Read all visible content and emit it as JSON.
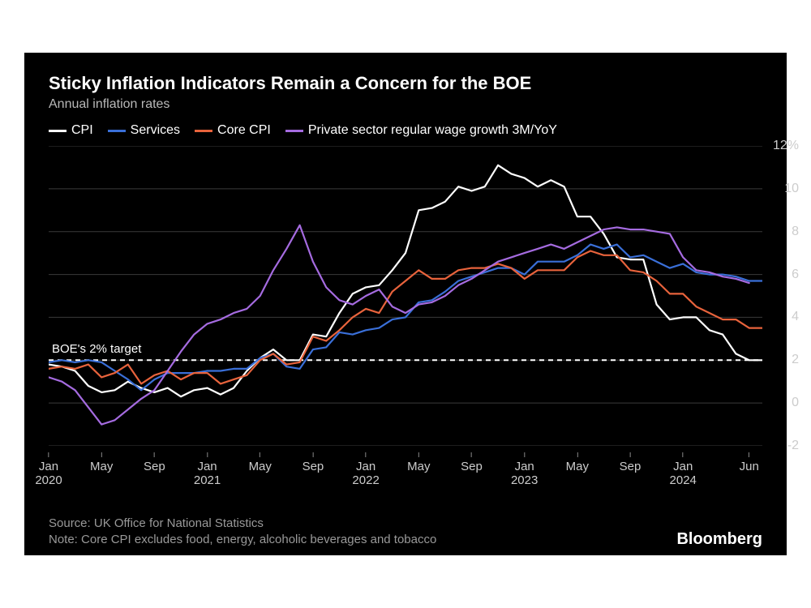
{
  "title": "Sticky Inflation Indicators Remain a Concern for the BOE",
  "subtitle": "Annual inflation rates",
  "brand": "Bloomberg",
  "source_line": "Source: UK Office for National Statistics",
  "note_line": "Note: Core CPI excludes food, energy, alcoholic beverages and tobacco",
  "annotation": {
    "text": "BOE's 2% target",
    "y_value": 2
  },
  "chart": {
    "type": "line",
    "background_color": "#000000",
    "grid_color": "#3a3a3a",
    "axis_color": "#cccccc",
    "line_width": 2.2,
    "x": {
      "min": 0,
      "max": 54,
      "ticks": [
        {
          "pos": 0,
          "month": "Jan",
          "year": "2020"
        },
        {
          "pos": 4,
          "month": "May",
          "year": ""
        },
        {
          "pos": 8,
          "month": "Sep",
          "year": ""
        },
        {
          "pos": 12,
          "month": "Jan",
          "year": "2021"
        },
        {
          "pos": 16,
          "month": "May",
          "year": ""
        },
        {
          "pos": 20,
          "month": "Sep",
          "year": ""
        },
        {
          "pos": 24,
          "month": "Jan",
          "year": "2022"
        },
        {
          "pos": 28,
          "month": "May",
          "year": ""
        },
        {
          "pos": 32,
          "month": "Sep",
          "year": ""
        },
        {
          "pos": 36,
          "month": "Jan",
          "year": "2023"
        },
        {
          "pos": 40,
          "month": "May",
          "year": ""
        },
        {
          "pos": 44,
          "month": "Sep",
          "year": ""
        },
        {
          "pos": 48,
          "month": "Jan",
          "year": "2024"
        },
        {
          "pos": 53,
          "month": "Jun",
          "year": ""
        }
      ]
    },
    "y": {
      "min": -2,
      "max": 12,
      "step": 2,
      "tick_labels": [
        "-2",
        "0",
        "2",
        "4",
        "6",
        "8",
        "10",
        "12%"
      ]
    },
    "target_line": {
      "value": 2,
      "color": "#ffffff",
      "dash": "6,5",
      "width": 2
    },
    "series": [
      {
        "name": "CPI",
        "label": "CPI",
        "color": "#ffffff",
        "values": [
          1.8,
          1.7,
          1.5,
          0.8,
          0.5,
          0.6,
          1.0,
          0.7,
          0.5,
          0.7,
          0.3,
          0.6,
          0.7,
          0.4,
          0.7,
          1.5,
          2.1,
          2.5,
          2.0,
          2.0,
          3.2,
          3.1,
          4.2,
          5.1,
          5.4,
          5.5,
          6.2,
          7.0,
          9.0,
          9.1,
          9.4,
          10.1,
          9.9,
          10.1,
          11.1,
          10.7,
          10.5,
          10.1,
          10.4,
          10.1,
          8.7,
          8.7,
          7.9,
          6.8,
          6.7,
          6.7,
          4.6,
          3.9,
          4.0,
          4.0,
          3.4,
          3.2,
          2.3,
          2.0,
          2.0
        ]
      },
      {
        "name": "Services",
        "label": "Services",
        "color": "#3a6fd8",
        "values": [
          1.9,
          2.0,
          1.9,
          2.0,
          1.9,
          1.5,
          1.1,
          0.6,
          1.1,
          1.4,
          1.4,
          1.4,
          1.5,
          1.5,
          1.6,
          1.6,
          2.1,
          2.3,
          1.7,
          1.6,
          2.5,
          2.6,
          3.3,
          3.2,
          3.4,
          3.5,
          3.9,
          4.0,
          4.7,
          4.8,
          5.2,
          5.7,
          5.9,
          6.1,
          6.3,
          6.3,
          6.0,
          6.6,
          6.6,
          6.6,
          6.9,
          7.4,
          7.2,
          7.4,
          6.8,
          6.9,
          6.6,
          6.3,
          6.5,
          6.1,
          6.0,
          6.0,
          5.9,
          5.7,
          5.7
        ]
      },
      {
        "name": "Core CPI",
        "label": "Core CPI",
        "color": "#e8633c",
        "values": [
          1.6,
          1.7,
          1.6,
          1.8,
          1.2,
          1.4,
          1.8,
          0.9,
          1.3,
          1.5,
          1.1,
          1.4,
          1.4,
          0.9,
          1.1,
          1.3,
          2.0,
          2.3,
          1.8,
          1.9,
          3.1,
          2.9,
          3.4,
          4.0,
          4.4,
          4.2,
          5.2,
          5.7,
          6.2,
          5.8,
          5.8,
          6.2,
          6.3,
          6.3,
          6.5,
          6.3,
          5.8,
          6.2,
          6.2,
          6.2,
          6.8,
          7.1,
          6.9,
          6.9,
          6.2,
          6.1,
          5.7,
          5.1,
          5.1,
          4.5,
          4.2,
          3.9,
          3.9,
          3.5,
          3.5
        ]
      },
      {
        "name": "Wages",
        "label": "Private sector regular wage growth 3M/YoY",
        "color": "#a56be0",
        "values": [
          1.2,
          1.0,
          0.6,
          -0.2,
          -1.0,
          -0.8,
          -0.3,
          0.2,
          0.6,
          1.5,
          2.4,
          3.2,
          3.7,
          3.9,
          4.2,
          4.4,
          5.0,
          6.2,
          7.2,
          8.3,
          6.6,
          5.4,
          4.8,
          4.6,
          5.0,
          5.3,
          4.5,
          4.2,
          4.6,
          4.7,
          5.0,
          5.5,
          5.8,
          6.2,
          6.6,
          6.8,
          7.0,
          7.2,
          7.4,
          7.2,
          7.5,
          7.8,
          8.1,
          8.2,
          8.1,
          8.1,
          8.0,
          7.9,
          6.8,
          6.2,
          6.1,
          5.9,
          5.8,
          5.6
        ]
      }
    ]
  }
}
